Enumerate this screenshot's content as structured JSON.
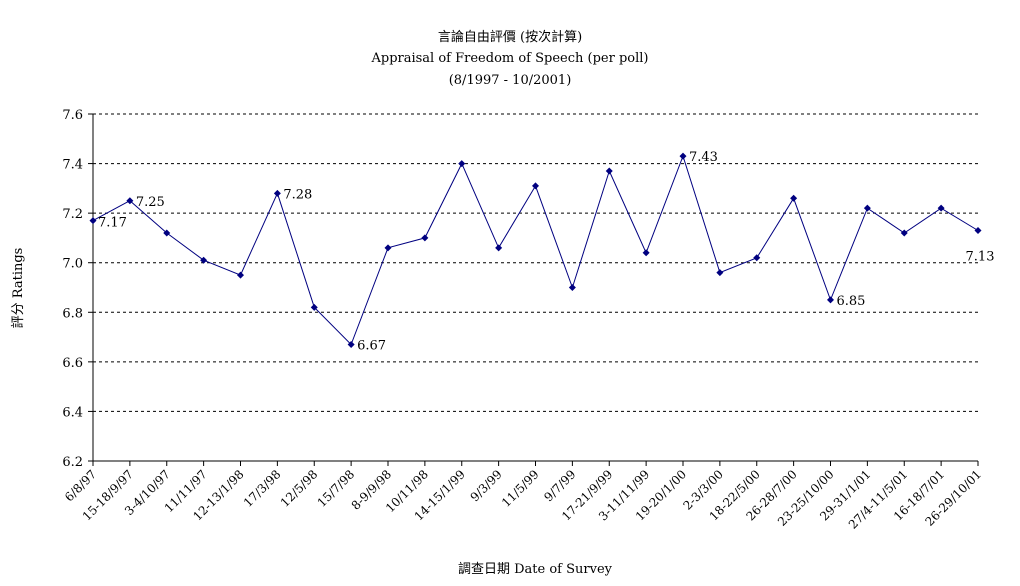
{
  "chart_data": {
    "type": "line",
    "title": "言論自由評價 (按次計算)",
    "subtitle": "Appraisal of  Freedom of Speech (per poll)",
    "period": "(8/1997 - 10/2001)",
    "xlabel": "調查日期 Date of Survey",
    "ylabel": "評分 Ratings",
    "ylim": [
      6.2,
      7.6
    ],
    "yticks": [
      "6.2",
      "6.4",
      "6.6",
      "6.8",
      "7.0",
      "7.2",
      "7.4",
      "7.6"
    ],
    "grid": "horizontal dashed",
    "color": "#000080",
    "categories": [
      "6/8/97",
      "15-18/9/97",
      "3-4/10/97",
      "11/11/97",
      "12-13/1/98",
      "17/3/98",
      "12/5/98",
      "15/7/98",
      "8-9/9/98",
      "10/11/98",
      "14-15/1/99",
      "9/3/99",
      "11/5/99",
      "9/7/99",
      "17-21/9/99",
      "3-11/11/99",
      "19-20/1/00",
      "2-3/3/00",
      "18-22/5/00",
      "26-28/7/00",
      "23-25/10/00",
      "29-31/1/01",
      "27/4-11/5/01",
      "16-18/7/01",
      "26-29/10/01"
    ],
    "values": [
      7.17,
      7.25,
      7.12,
      7.01,
      6.95,
      7.28,
      6.82,
      6.67,
      7.06,
      7.1,
      7.4,
      7.06,
      7.31,
      6.9,
      7.37,
      7.04,
      7.43,
      6.96,
      7.02,
      7.26,
      6.85,
      7.22,
      7.12,
      7.22,
      7.13
    ],
    "data_labels": [
      {
        "index": 0,
        "text": "7.17"
      },
      {
        "index": 1,
        "text": "7.25"
      },
      {
        "index": 5,
        "text": "7.28"
      },
      {
        "index": 7,
        "text": "6.67"
      },
      {
        "index": 16,
        "text": "7.43"
      },
      {
        "index": 20,
        "text": "6.85"
      },
      {
        "index": 24,
        "text": "7.13"
      }
    ]
  }
}
